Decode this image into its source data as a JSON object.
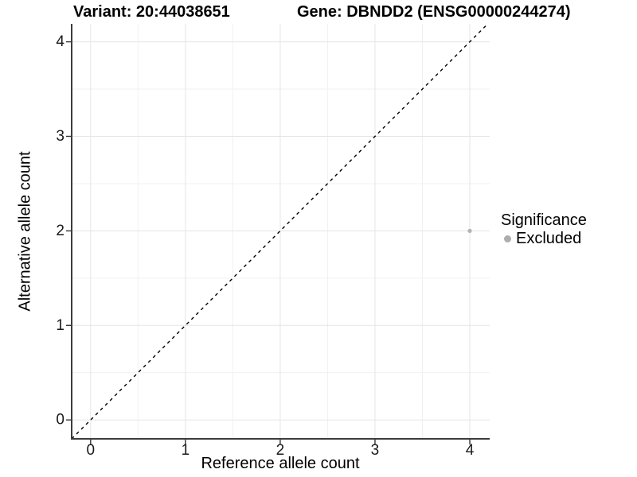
{
  "titles": {
    "variant": "Variant: 20:44038651",
    "gene": "Gene: DBNDD2 (ENSG00000244274)"
  },
  "axes": {
    "x_label": "Reference allele count",
    "y_label": "Alternative allele count"
  },
  "legend": {
    "title": "Significance",
    "items": [
      {
        "label": "Excluded",
        "color": "#adadad"
      }
    ]
  },
  "chart_data": {
    "type": "scatter",
    "title": "Variant: 20:44038651    Gene: DBNDD2 (ENSG00000244274)",
    "xlabel": "Reference allele count",
    "ylabel": "Alternative allele count",
    "xlim": [
      -0.2,
      4.21
    ],
    "ylim": [
      -0.2,
      4.19
    ],
    "xticks": [
      0,
      1,
      2,
      3,
      4
    ],
    "yticks": [
      0,
      1,
      2,
      3,
      4
    ],
    "minor_grid_step": 0.5,
    "grid": "major and minor, light gray on white panel",
    "legend_position": "right",
    "identity_line": {
      "slope": 1,
      "intercept": 0,
      "style": "dashed",
      "color": "#000000"
    },
    "series": [
      {
        "name": "Excluded",
        "color": "#b3b3b3",
        "points": [
          {
            "x": 4,
            "y": 2
          }
        ]
      }
    ]
  },
  "colors": {
    "background": "#ffffff",
    "grid_major": "#e5e5e5",
    "grid_minor": "#f1f1f1",
    "axis_line": "#3c3c3c",
    "tick_mark": "#333333",
    "tick_text": "#1a1a1a",
    "identity_line": "#000000",
    "point": "#b3b3b3"
  }
}
